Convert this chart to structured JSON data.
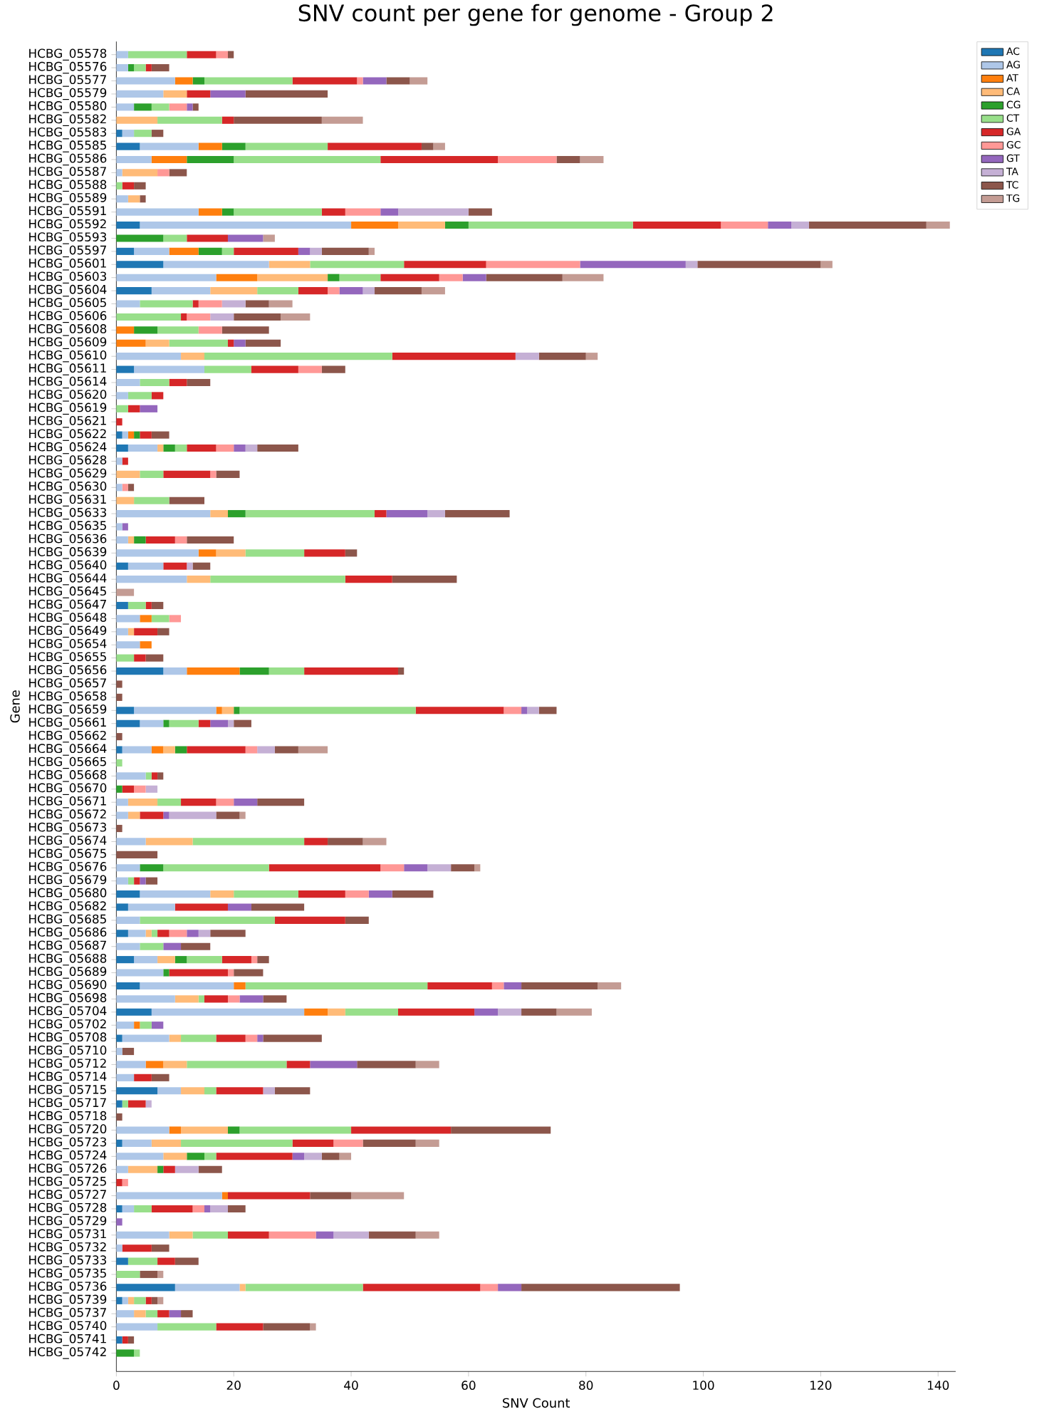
{
  "chart_data": {
    "type": "bar",
    "orientation": "horizontal",
    "stacked": true,
    "title": "SNV count per gene for genome - Group 2",
    "xlabel": "SNV Count",
    "ylabel": "Gene",
    "categories": [
      "HCBG_05578",
      "HCBG_05576",
      "HCBG_05577",
      "HCBG_05579",
      "HCBG_05580",
      "HCBG_05582",
      "HCBG_05583",
      "HCBG_05585",
      "HCBG_05586",
      "HCBG_05587",
      "HCBG_05588",
      "HCBG_05589",
      "HCBG_05591",
      "HCBG_05592",
      "HCBG_05593",
      "HCBG_05597",
      "HCBG_05601",
      "HCBG_05603",
      "HCBG_05604",
      "HCBG_05605",
      "HCBG_05606",
      "HCBG_05608",
      "HCBG_05609",
      "HCBG_05610",
      "HCBG_05611",
      "HCBG_05614",
      "HCBG_05620",
      "HCBG_05619",
      "HCBG_05621",
      "HCBG_05622",
      "HCBG_05624",
      "HCBG_05628",
      "HCBG_05629",
      "HCBG_05630",
      "HCBG_05631",
      "HCBG_05633",
      "HCBG_05635",
      "HCBG_05636",
      "HCBG_05639",
      "HCBG_05640",
      "HCBG_05644",
      "HCBG_05645",
      "HCBG_05647",
      "HCBG_05648",
      "HCBG_05649",
      "HCBG_05654",
      "HCBG_05655",
      "HCBG_05656",
      "HCBG_05657",
      "HCBG_05658",
      "HCBG_05659",
      "HCBG_05661",
      "HCBG_05662",
      "HCBG_05664",
      "HCBG_05665",
      "HCBG_05668",
      "HCBG_05670",
      "HCBG_05671",
      "HCBG_05672",
      "HCBG_05673",
      "HCBG_05674",
      "HCBG_05675",
      "HCBG_05676",
      "HCBG_05679",
      "HCBG_05680",
      "HCBG_05682",
      "HCBG_05685",
      "HCBG_05686",
      "HCBG_05687",
      "HCBG_05688",
      "HCBG_05689",
      "HCBG_05690",
      "HCBG_05698",
      "HCBG_05704",
      "HCBG_05702",
      "HCBG_05708",
      "HCBG_05710",
      "HCBG_05712",
      "HCBG_05714",
      "HCBG_05715",
      "HCBG_05717",
      "HCBG_05718",
      "HCBG_05720",
      "HCBG_05723",
      "HCBG_05724",
      "HCBG_05726",
      "HCBG_05725",
      "HCBG_05727",
      "HCBG_05728",
      "HCBG_05729",
      "HCBG_05731",
      "HCBG_05732",
      "HCBG_05733",
      "HCBG_05735",
      "HCBG_05736",
      "HCBG_05739",
      "HCBG_05737",
      "HCBG_05740",
      "HCBG_05741",
      "HCBG_05742"
    ],
    "xlim": [
      0,
      143
    ],
    "xticks": [
      0,
      20,
      40,
      60,
      80,
      100,
      120,
      140
    ],
    "grid": false,
    "legend": "top right",
    "series": [
      {
        "name": "AC",
        "color": "#1f77b4",
        "values": [
          0,
          0,
          0,
          0,
          0,
          0,
          1,
          4,
          0,
          0,
          0,
          0,
          0,
          4,
          0,
          3,
          8,
          0,
          6,
          0,
          0,
          0,
          0,
          0,
          3,
          0,
          0,
          0,
          0,
          1,
          2,
          0,
          0,
          0,
          0,
          0,
          0,
          0,
          0,
          2,
          0,
          0,
          2,
          0,
          0,
          0,
          0,
          8,
          0,
          0,
          3,
          4,
          0,
          1,
          0,
          0,
          0,
          0,
          0,
          0,
          0,
          0,
          0,
          0,
          4,
          2,
          0,
          2,
          0,
          3,
          0,
          4,
          0,
          6,
          0,
          1,
          0,
          0,
          0,
          7,
          1,
          0,
          0,
          1,
          0,
          0,
          0,
          0,
          1,
          0,
          0,
          0,
          2,
          0,
          10,
          1,
          0,
          0,
          1,
          0
        ]
      },
      {
        "name": "AG",
        "color": "#aec7e8",
        "values": [
          2,
          2,
          10,
          8,
          3,
          0,
          2,
          10,
          6,
          1,
          0,
          2,
          14,
          36,
          0,
          6,
          18,
          17,
          10,
          4,
          0,
          0,
          0,
          11,
          12,
          4,
          2,
          0,
          0,
          1,
          5,
          1,
          0,
          1,
          0,
          16,
          1,
          2,
          14,
          6,
          12,
          0,
          0,
          4,
          2,
          4,
          0,
          4,
          0,
          0,
          14,
          4,
          0,
          5,
          0,
          5,
          0,
          2,
          2,
          0,
          5,
          0,
          4,
          2,
          12,
          8,
          4,
          3,
          4,
          4,
          8,
          16,
          10,
          26,
          3,
          8,
          1,
          5,
          3,
          4,
          0,
          0,
          9,
          5,
          8,
          2,
          0,
          18,
          2,
          0,
          9,
          1,
          0,
          0,
          11,
          1,
          3,
          7,
          0,
          0
        ]
      },
      {
        "name": "AT",
        "color": "#ff7f0e",
        "values": [
          0,
          0,
          3,
          0,
          0,
          0,
          0,
          4,
          6,
          0,
          0,
          0,
          4,
          8,
          0,
          5,
          0,
          7,
          0,
          0,
          0,
          3,
          5,
          0,
          0,
          0,
          0,
          0,
          0,
          1,
          0,
          0,
          0,
          0,
          0,
          0,
          0,
          0,
          3,
          0,
          0,
          0,
          0,
          2,
          0,
          2,
          0,
          9,
          0,
          0,
          1,
          0,
          0,
          2,
          0,
          0,
          0,
          0,
          0,
          0,
          0,
          0,
          0,
          0,
          0,
          0,
          0,
          0,
          0,
          0,
          0,
          2,
          0,
          4,
          1,
          0,
          0,
          3,
          0,
          0,
          0,
          0,
          2,
          0,
          0,
          0,
          0,
          1,
          0,
          0,
          0,
          0,
          0,
          0,
          0,
          0,
          0,
          0,
          0,
          0
        ]
      },
      {
        "name": "CA",
        "color": "#ffbb78",
        "values": [
          0,
          0,
          0,
          4,
          0,
          7,
          0,
          0,
          0,
          6,
          0,
          2,
          0,
          8,
          0,
          0,
          7,
          12,
          8,
          0,
          0,
          0,
          4,
          4,
          0,
          0,
          0,
          0,
          0,
          0,
          1,
          0,
          4,
          0,
          3,
          3,
          0,
          1,
          5,
          0,
          4,
          0,
          0,
          0,
          1,
          0,
          0,
          0,
          0,
          0,
          2,
          0,
          0,
          2,
          0,
          0,
          0,
          5,
          2,
          0,
          8,
          0,
          0,
          0,
          4,
          0,
          0,
          1,
          0,
          3,
          0,
          0,
          4,
          3,
          0,
          2,
          0,
          4,
          0,
          4,
          0,
          0,
          8,
          5,
          4,
          5,
          0,
          0,
          0,
          0,
          4,
          0,
          0,
          0,
          1,
          1,
          2,
          0,
          0,
          0
        ]
      },
      {
        "name": "CG",
        "color": "#2ca02c",
        "values": [
          0,
          1,
          2,
          0,
          3,
          0,
          0,
          4,
          8,
          0,
          0,
          0,
          2,
          4,
          8,
          4,
          0,
          2,
          0,
          0,
          0,
          4,
          0,
          0,
          0,
          0,
          0,
          0,
          0,
          1,
          2,
          0,
          0,
          0,
          0,
          3,
          0,
          2,
          0,
          0,
          0,
          0,
          0,
          0,
          0,
          0,
          0,
          5,
          0,
          0,
          1,
          1,
          0,
          2,
          0,
          0,
          1,
          0,
          0,
          0,
          0,
          0,
          4,
          0,
          0,
          0,
          0,
          0,
          0,
          2,
          1,
          0,
          0,
          0,
          0,
          0,
          0,
          0,
          0,
          0,
          0,
          0,
          2,
          0,
          3,
          1,
          0,
          0,
          0,
          0,
          0,
          0,
          0,
          0,
          0,
          0,
          0,
          0,
          0,
          3
        ]
      },
      {
        "name": "CT",
        "color": "#98df8a",
        "values": [
          10,
          2,
          15,
          0,
          3,
          11,
          3,
          14,
          25,
          0,
          1,
          0,
          15,
          28,
          4,
          2,
          16,
          7,
          7,
          9,
          11,
          7,
          10,
          32,
          8,
          5,
          4,
          2,
          0,
          0,
          2,
          0,
          4,
          0,
          6,
          22,
          0,
          0,
          10,
          0,
          23,
          0,
          3,
          3,
          0,
          0,
          3,
          6,
          0,
          0,
          30,
          5,
          0,
          0,
          1,
          1,
          0,
          4,
          0,
          0,
          19,
          0,
          18,
          1,
          11,
          0,
          23,
          1,
          4,
          6,
          0,
          31,
          1,
          9,
          2,
          6,
          0,
          17,
          0,
          2,
          1,
          0,
          19,
          19,
          2,
          0,
          0,
          0,
          3,
          0,
          6,
          0,
          5,
          4,
          20,
          2,
          2,
          10,
          0,
          1
        ]
      },
      {
        "name": "GA",
        "color": "#d62728",
        "values": [
          5,
          1,
          11,
          4,
          0,
          2,
          0,
          16,
          20,
          0,
          2,
          0,
          4,
          15,
          7,
          11,
          14,
          10,
          5,
          1,
          1,
          0,
          1,
          21,
          8,
          3,
          2,
          2,
          1,
          2,
          5,
          1,
          8,
          0,
          0,
          2,
          0,
          5,
          7,
          4,
          8,
          0,
          1,
          0,
          4,
          0,
          2,
          16,
          0,
          0,
          15,
          2,
          0,
          10,
          0,
          1,
          2,
          6,
          4,
          0,
          4,
          0,
          19,
          1,
          8,
          9,
          12,
          2,
          0,
          5,
          10,
          11,
          4,
          13,
          0,
          5,
          0,
          4,
          3,
          8,
          3,
          0,
          17,
          7,
          13,
          2,
          1,
          14,
          7,
          0,
          7,
          5,
          3,
          0,
          20,
          1,
          2,
          8,
          1,
          0
        ]
      },
      {
        "name": "GC",
        "color": "#ff9896",
        "values": [
          2,
          0,
          1,
          0,
          3,
          0,
          0,
          0,
          10,
          2,
          0,
          0,
          6,
          8,
          0,
          0,
          16,
          4,
          2,
          4,
          4,
          4,
          0,
          0,
          4,
          0,
          0,
          0,
          0,
          0,
          3,
          0,
          1,
          1,
          0,
          0,
          0,
          2,
          0,
          0,
          0,
          0,
          0,
          2,
          0,
          0,
          0,
          0,
          0,
          0,
          3,
          0,
          0,
          2,
          0,
          0,
          2,
          3,
          0,
          0,
          0,
          0,
          4,
          0,
          4,
          0,
          0,
          3,
          0,
          1,
          1,
          2,
          2,
          0,
          0,
          2,
          0,
          0,
          0,
          0,
          0,
          0,
          0,
          5,
          0,
          0,
          1,
          0,
          2,
          0,
          8,
          0,
          0,
          0,
          3,
          0,
          0,
          0,
          0,
          0
        ]
      },
      {
        "name": "GT",
        "color": "#9467bd",
        "values": [
          0,
          0,
          4,
          6,
          1,
          0,
          0,
          0,
          0,
          0,
          0,
          0,
          3,
          4,
          6,
          2,
          18,
          4,
          4,
          0,
          0,
          0,
          2,
          0,
          0,
          0,
          0,
          3,
          0,
          0,
          2,
          0,
          0,
          0,
          0,
          7,
          1,
          0,
          0,
          0,
          0,
          0,
          0,
          0,
          0,
          0,
          0,
          0,
          0,
          0,
          1,
          3,
          0,
          0,
          0,
          0,
          0,
          4,
          1,
          0,
          0,
          0,
          4,
          1,
          4,
          4,
          0,
          2,
          3,
          0,
          0,
          3,
          4,
          4,
          2,
          1,
          0,
          8,
          0,
          0,
          0,
          0,
          0,
          0,
          2,
          0,
          0,
          0,
          1,
          1,
          3,
          0,
          0,
          0,
          4,
          0,
          2,
          0,
          0,
          0
        ]
      },
      {
        "name": "TA",
        "color": "#c5b0d5",
        "values": [
          0,
          0,
          0,
          0,
          0,
          0,
          0,
          0,
          0,
          0,
          0,
          0,
          12,
          3,
          0,
          2,
          2,
          0,
          2,
          4,
          4,
          0,
          0,
          4,
          0,
          0,
          0,
          0,
          0,
          0,
          2,
          0,
          0,
          0,
          0,
          3,
          0,
          0,
          0,
          1,
          0,
          0,
          0,
          0,
          0,
          0,
          0,
          0,
          0,
          0,
          2,
          1,
          0,
          3,
          0,
          0,
          2,
          0,
          8,
          0,
          0,
          0,
          4,
          0,
          0,
          0,
          0,
          2,
          0,
          0,
          0,
          0,
          0,
          4,
          0,
          0,
          0,
          0,
          0,
          2,
          1,
          0,
          0,
          0,
          3,
          4,
          0,
          0,
          3,
          0,
          6,
          0,
          0,
          0,
          0,
          0,
          0,
          0,
          0,
          0
        ]
      },
      {
        "name": "TC",
        "color": "#8c564b",
        "values": [
          1,
          3,
          4,
          14,
          1,
          15,
          2,
          2,
          4,
          3,
          2,
          1,
          4,
          20,
          0,
          8,
          21,
          13,
          8,
          4,
          8,
          8,
          6,
          8,
          4,
          4,
          0,
          0,
          0,
          3,
          7,
          0,
          4,
          1,
          6,
          11,
          0,
          8,
          2,
          3,
          11,
          0,
          2,
          0,
          2,
          0,
          3,
          1,
          1,
          1,
          3,
          3,
          1,
          4,
          0,
          1,
          0,
          8,
          4,
          1,
          6,
          7,
          4,
          2,
          7,
          9,
          4,
          6,
          5,
          2,
          5,
          13,
          4,
          6,
          0,
          10,
          2,
          10,
          3,
          6,
          0,
          1,
          17,
          9,
          3,
          4,
          0,
          7,
          3,
          0,
          8,
          3,
          4,
          3,
          27,
          1,
          2,
          8,
          1,
          0
        ]
      },
      {
        "name": "TG",
        "color": "#c49c94",
        "values": [
          0,
          0,
          3,
          0,
          0,
          7,
          0,
          2,
          4,
          0,
          0,
          0,
          0,
          4,
          2,
          1,
          2,
          7,
          4,
          4,
          5,
          0,
          0,
          2,
          0,
          0,
          0,
          0,
          0,
          0,
          0,
          0,
          0,
          0,
          0,
          0,
          0,
          0,
          0,
          0,
          0,
          3,
          0,
          0,
          0,
          0,
          0,
          0,
          0,
          0,
          0,
          0,
          0,
          5,
          0,
          0,
          0,
          0,
          1,
          0,
          4,
          0,
          1,
          0,
          0,
          0,
          0,
          0,
          0,
          0,
          0,
          4,
          0,
          6,
          0,
          0,
          0,
          4,
          0,
          0,
          0,
          0,
          0,
          4,
          2,
          0,
          0,
          9,
          0,
          0,
          4,
          0,
          0,
          1,
          0,
          1,
          0,
          1,
          0,
          0
        ]
      }
    ]
  }
}
